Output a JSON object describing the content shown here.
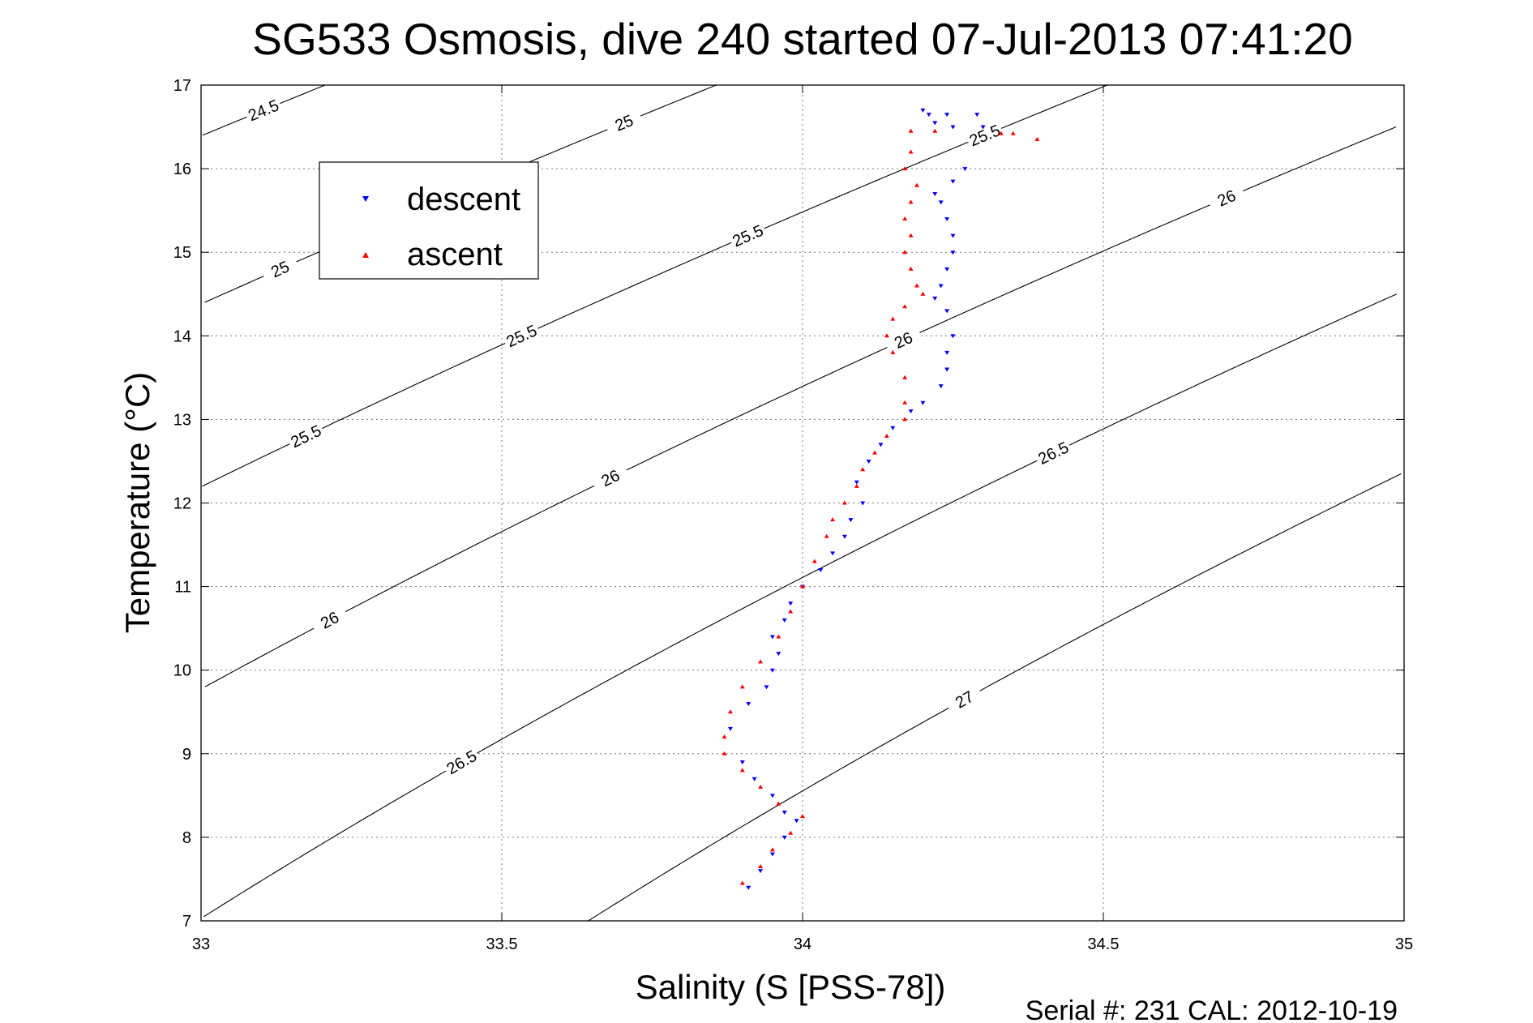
{
  "chart_data": {
    "type": "scatter",
    "title": "SG533 Osmosis, dive 240 started 07-Jul-2013 07:41:20",
    "xlabel": "Salinity (S [PSS-78])",
    "ylabel": "Temperature (°C)",
    "xlim": [
      33,
      35
    ],
    "ylim": [
      7,
      17
    ],
    "xticks": [
      "33",
      "33.5",
      "34",
      "34.5",
      "35"
    ],
    "yticks": [
      "7",
      "8",
      "9",
      "10",
      "11",
      "12",
      "13",
      "14",
      "15",
      "16",
      "17"
    ],
    "grid": true,
    "legend_position": "top-left",
    "footer": "Serial #: 231  CAL: 2012-10-19",
    "series": [
      {
        "name": "descent",
        "color": "#0000ff",
        "marker": "triangle-down",
        "points": [
          [
            34.2,
            16.7
          ],
          [
            34.21,
            16.65
          ],
          [
            34.24,
            16.65
          ],
          [
            34.29,
            16.65
          ],
          [
            34.22,
            16.55
          ],
          [
            34.25,
            16.5
          ],
          [
            34.3,
            16.5
          ],
          [
            34.27,
            16.0
          ],
          [
            34.25,
            15.85
          ],
          [
            34.22,
            15.7
          ],
          [
            34.23,
            15.6
          ],
          [
            34.24,
            15.4
          ],
          [
            34.25,
            15.2
          ],
          [
            34.25,
            15.0
          ],
          [
            34.24,
            14.8
          ],
          [
            34.23,
            14.6
          ],
          [
            34.22,
            14.45
          ],
          [
            34.24,
            14.3
          ],
          [
            34.25,
            14.0
          ],
          [
            34.24,
            13.8
          ],
          [
            34.24,
            13.6
          ],
          [
            34.23,
            13.4
          ],
          [
            34.2,
            13.2
          ],
          [
            34.18,
            13.1
          ],
          [
            34.15,
            12.9
          ],
          [
            34.13,
            12.7
          ],
          [
            34.11,
            12.5
          ],
          [
            34.09,
            12.25
          ],
          [
            34.1,
            12.0
          ],
          [
            34.08,
            11.8
          ],
          [
            34.07,
            11.6
          ],
          [
            34.05,
            11.4
          ],
          [
            34.03,
            11.2
          ],
          [
            34.0,
            11.0
          ],
          [
            33.98,
            10.8
          ],
          [
            33.97,
            10.6
          ],
          [
            33.95,
            10.4
          ],
          [
            33.96,
            10.2
          ],
          [
            33.95,
            10.0
          ],
          [
            33.94,
            9.8
          ],
          [
            33.91,
            9.6
          ],
          [
            33.88,
            9.3
          ],
          [
            33.9,
            8.9
          ],
          [
            33.92,
            8.7
          ],
          [
            33.95,
            8.5
          ],
          [
            33.97,
            8.3
          ],
          [
            33.99,
            8.2
          ],
          [
            33.97,
            8.0
          ],
          [
            33.95,
            7.8
          ],
          [
            33.93,
            7.6
          ],
          [
            33.91,
            7.4
          ]
        ]
      },
      {
        "name": "ascent",
        "color": "#ff0000",
        "marker": "triangle-up",
        "points": [
          [
            34.18,
            16.45
          ],
          [
            34.22,
            16.45
          ],
          [
            34.33,
            16.42
          ],
          [
            34.35,
            16.42
          ],
          [
            34.39,
            16.35
          ],
          [
            34.18,
            16.2
          ],
          [
            34.17,
            16.0
          ],
          [
            34.19,
            15.8
          ],
          [
            34.18,
            15.6
          ],
          [
            34.17,
            15.4
          ],
          [
            34.18,
            15.2
          ],
          [
            34.17,
            15.0
          ],
          [
            34.18,
            14.8
          ],
          [
            34.19,
            14.6
          ],
          [
            34.2,
            14.5
          ],
          [
            34.17,
            14.35
          ],
          [
            34.15,
            14.2
          ],
          [
            34.14,
            14.0
          ],
          [
            34.15,
            13.8
          ],
          [
            34.17,
            13.5
          ],
          [
            34.17,
            13.2
          ],
          [
            34.17,
            13.0
          ],
          [
            34.14,
            12.8
          ],
          [
            34.12,
            12.6
          ],
          [
            34.1,
            12.4
          ],
          [
            34.09,
            12.2
          ],
          [
            34.07,
            12.0
          ],
          [
            34.05,
            11.8
          ],
          [
            34.04,
            11.6
          ],
          [
            34.02,
            11.3
          ],
          [
            34.0,
            11.0
          ],
          [
            33.98,
            10.7
          ],
          [
            33.96,
            10.4
          ],
          [
            33.93,
            10.1
          ],
          [
            33.9,
            9.8
          ],
          [
            33.88,
            9.5
          ],
          [
            33.87,
            9.2
          ],
          [
            33.87,
            9.0
          ],
          [
            33.9,
            8.8
          ],
          [
            33.93,
            8.6
          ],
          [
            33.96,
            8.4
          ],
          [
            34.0,
            8.25
          ],
          [
            33.98,
            8.05
          ],
          [
            33.95,
            7.85
          ],
          [
            33.93,
            7.65
          ],
          [
            33.9,
            7.45
          ]
        ]
      }
    ],
    "isopycnals": [
      {
        "sigma": 24.5,
        "labels": [
          "24.5"
        ]
      },
      {
        "sigma": 25,
        "labels": [
          "25",
          "25",
          "25"
        ]
      },
      {
        "sigma": 25.5,
        "labels": [
          "25.5",
          "25.5",
          "25.5",
          "25.5"
        ]
      },
      {
        "sigma": 26,
        "labels": [
          "26",
          "26",
          "26",
          "26"
        ]
      },
      {
        "sigma": 26.5,
        "labels": [
          "26.5",
          "26.5"
        ]
      },
      {
        "sigma": 27,
        "labels": [
          "27"
        ]
      }
    ]
  }
}
